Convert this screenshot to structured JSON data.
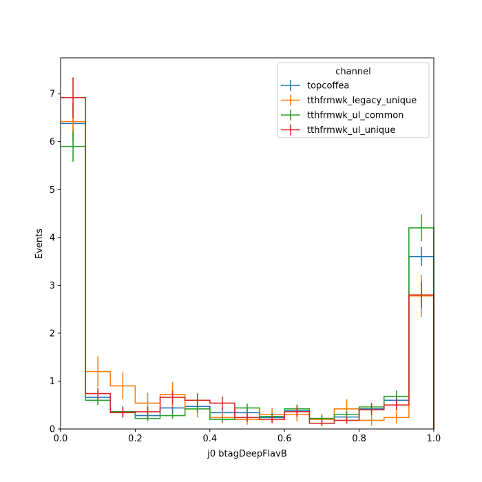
{
  "chart_data": {
    "type": "step-histogram",
    "xlabel": "j0 btagDeepFlavB",
    "ylabel": "Events",
    "xlim": [
      0,
      1.0
    ],
    "ylim": [
      0,
      7.75
    ],
    "xticks": [
      "0.0",
      "0.2",
      "0.4",
      "0.6",
      "0.8",
      "1.0"
    ],
    "yticks": [
      "0",
      "1",
      "2",
      "3",
      "4",
      "5",
      "6",
      "7"
    ],
    "bin_edges": [
      0,
      0.0667,
      0.1333,
      0.2,
      0.2667,
      0.3333,
      0.4,
      0.4667,
      0.5333,
      0.6,
      0.6667,
      0.7333,
      0.8,
      0.8667,
      0.9333,
      1.0
    ],
    "legend": {
      "title": "channel",
      "position": "top-right"
    },
    "series": [
      {
        "name": "topcoffea",
        "color": "#1f77b4",
        "values": [
          6.38,
          0.66,
          0.36,
          0.28,
          0.44,
          0.47,
          0.34,
          0.34,
          0.24,
          0.38,
          0.22,
          0.25,
          0.42,
          0.6,
          3.6
        ],
        "errors": [
          0.4,
          0.15,
          0.12,
          0.1,
          0.13,
          0.13,
          0.11,
          0.11,
          0.09,
          0.12,
          0.09,
          0.1,
          0.12,
          0.15,
          0.2
        ]
      },
      {
        "name": "tthfrmwk_legacy_unique",
        "color": "#ff7f0e",
        "values": [
          6.42,
          1.2,
          0.9,
          0.54,
          0.72,
          0.42,
          0.24,
          0.2,
          0.3,
          0.3,
          0.2,
          0.42,
          0.18,
          0.24,
          2.78
        ],
        "errors": [
          0.4,
          0.32,
          0.28,
          0.22,
          0.26,
          0.18,
          0.12,
          0.11,
          0.14,
          0.14,
          0.11,
          0.2,
          0.11,
          0.12,
          0.44
        ]
      },
      {
        "name": "tthfrmwk_ul_common",
        "color": "#2ca02c",
        "values": [
          5.9,
          0.6,
          0.36,
          0.22,
          0.28,
          0.42,
          0.2,
          0.44,
          0.26,
          0.42,
          0.22,
          0.3,
          0.46,
          0.68,
          4.2
        ],
        "errors": [
          0.32,
          0.1,
          0.08,
          0.06,
          0.07,
          0.08,
          0.06,
          0.09,
          0.07,
          0.09,
          0.06,
          0.07,
          0.09,
          0.12,
          0.28
        ]
      },
      {
        "name": "tthfrmwk_ul_unique",
        "color": "#d62728",
        "values": [
          6.92,
          0.74,
          0.34,
          0.36,
          0.66,
          0.6,
          0.54,
          0.24,
          0.2,
          0.36,
          0.12,
          0.18,
          0.4,
          0.5,
          2.8
        ],
        "errors": [
          0.42,
          0.12,
          0.1,
          0.1,
          0.14,
          0.14,
          0.14,
          0.09,
          0.08,
          0.11,
          0.06,
          0.07,
          0.11,
          0.12,
          0.28
        ]
      }
    ]
  }
}
